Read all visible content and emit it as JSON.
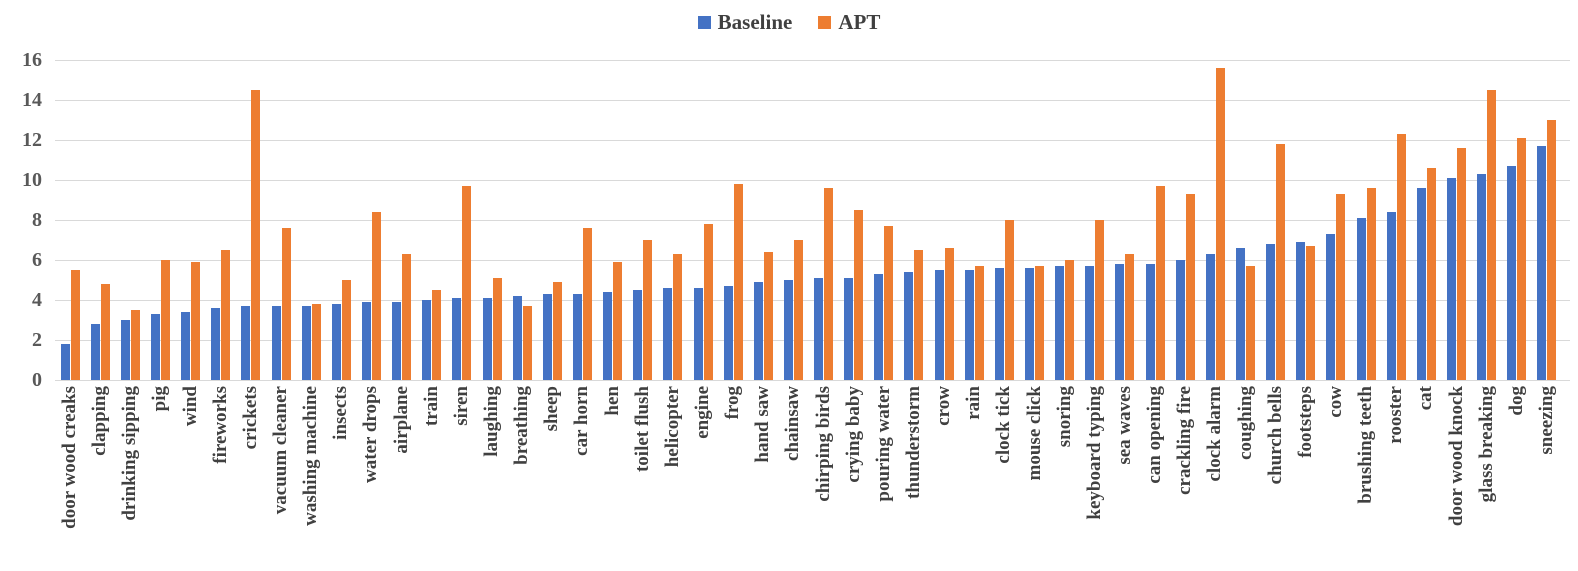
{
  "colors": {
    "baseline_series": "#4472C4",
    "apt_series": "#ED7D31",
    "gridline": "#D9D9D9",
    "axis_tick_text": "#595959",
    "category_text": "#404040",
    "legend_text": "#404040",
    "background": "#FFFFFF"
  },
  "chart_data": {
    "type": "bar",
    "title": "",
    "xlabel": "",
    "ylabel": "",
    "ylim": [
      0,
      16
    ],
    "ytick_step": 2,
    "ytick_labels": [
      "0",
      "2",
      "4",
      "6",
      "8",
      "10",
      "12",
      "14",
      "16"
    ],
    "grid": true,
    "legend_position": "top-center",
    "categories": [
      "door wood creaks",
      "clapping",
      "drinking sipping",
      "pig",
      "wind",
      "fireworks",
      "crickets",
      "vacuum cleaner",
      "washing machine",
      "insects",
      "water drops",
      "airplane",
      "train",
      "siren",
      "laughing",
      "breathing",
      "sheep",
      "car horn",
      "hen",
      "toilet flush",
      "helicopter",
      "engine",
      "frog",
      "hand saw",
      "chainsaw",
      "chirping birds",
      "crying baby",
      "pouring water",
      "thunderstorm",
      "crow",
      "rain",
      "clock tick",
      "mouse click",
      "snoring",
      "keyboard typing",
      "sea waves",
      "can opening",
      "crackling fire",
      "clock alarm",
      "coughing",
      "church bells",
      "footsteps",
      "cow",
      "brushing teeth",
      "rooster",
      "cat",
      "door wood knock",
      "glass breaking",
      "dog",
      "sneezing"
    ],
    "series": [
      {
        "name": "Baseline",
        "color": "#4472C4",
        "values": [
          1.8,
          2.8,
          3.0,
          3.3,
          3.4,
          3.6,
          3.7,
          3.7,
          3.7,
          3.8,
          3.9,
          3.9,
          4.0,
          4.1,
          4.1,
          4.2,
          4.3,
          4.3,
          4.4,
          4.5,
          4.6,
          4.6,
          4.7,
          4.9,
          5.0,
          5.1,
          5.1,
          5.3,
          5.4,
          5.5,
          5.5,
          5.6,
          5.6,
          5.7,
          5.7,
          5.8,
          5.8,
          6.0,
          6.3,
          6.6,
          6.8,
          6.9,
          7.3,
          8.1,
          8.4,
          9.6,
          10.1,
          10.3,
          10.7,
          11.7
        ]
      },
      {
        "name": "APT",
        "color": "#ED7D31",
        "values": [
          5.5,
          4.8,
          3.5,
          6.0,
          5.9,
          6.5,
          14.5,
          7.6,
          3.8,
          5.0,
          8.4,
          6.3,
          4.5,
          9.7,
          5.1,
          3.7,
          4.9,
          7.6,
          5.9,
          7.0,
          6.3,
          7.8,
          9.8,
          6.4,
          7.0,
          9.6,
          8.5,
          7.7,
          6.5,
          6.6,
          5.7,
          8.0,
          5.7,
          6.0,
          8.0,
          6.3,
          9.7,
          9.3,
          15.6,
          5.7,
          11.8,
          6.7,
          9.3,
          9.6,
          12.3,
          10.6,
          11.6,
          14.5,
          12.1,
          13.0
        ]
      }
    ]
  }
}
